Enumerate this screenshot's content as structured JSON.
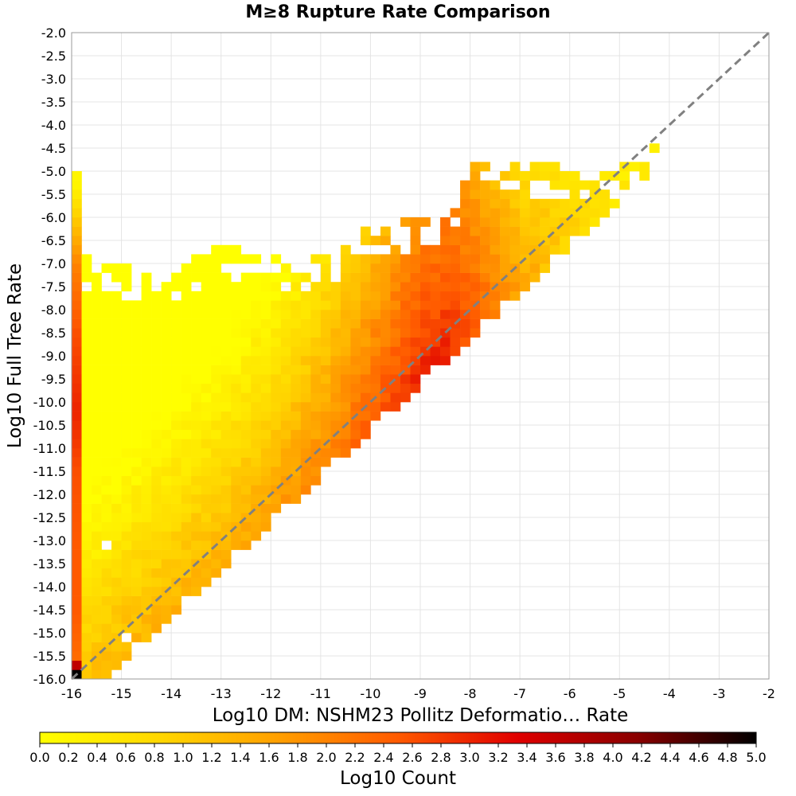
{
  "chart_data": {
    "type": "heatmap",
    "title": "M≥8 Rupture Rate Comparison",
    "xlabel": "Log10 DM: NSHM23 Pollitz Deformatio… Rate",
    "ylabel": "Log10 Full Tree Rate",
    "xlim": [
      -16,
      -2
    ],
    "ylim": [
      -16,
      -2
    ],
    "x_ticks": [
      "-16",
      "-15",
      "-14",
      "-13",
      "-12",
      "-11",
      "-10",
      "-9",
      "-8",
      "-7",
      "-6",
      "-5",
      "-4",
      "-3",
      "-2"
    ],
    "y_ticks": [
      "-2.0",
      "-2.5",
      "-3.0",
      "-3.5",
      "-4.0",
      "-4.5",
      "-5.0",
      "-5.5",
      "-6.0",
      "-6.5",
      "-7.0",
      "-7.5",
      "-8.0",
      "-8.5",
      "-9.0",
      "-9.5",
      "-10.0",
      "-10.5",
      "-11.0",
      "-11.5",
      "-12.0",
      "-12.5",
      "-13.0",
      "-13.5",
      "-14.0",
      "-14.5",
      "-15.0",
      "-15.5",
      "-16.0"
    ],
    "grid": true,
    "bin_width": 0.2,
    "reference_line": {
      "style": "dashed",
      "from": [
        -16,
        -16
      ],
      "to": [
        -2,
        -2
      ],
      "color": "#808080"
    },
    "colorbar": {
      "label": "Log10 Count",
      "range": [
        0,
        5
      ],
      "ticks": [
        "0.0",
        "0.2",
        "0.4",
        "0.6",
        "0.8",
        "1.0",
        "1.2",
        "1.4",
        "1.6",
        "1.8",
        "2.0",
        "2.2",
        "2.4",
        "2.6",
        "2.8",
        "3.0",
        "3.2",
        "3.4",
        "3.6",
        "3.8",
        "4.0",
        "4.2",
        "4.4",
        "4.6",
        "4.8",
        "5.0"
      ],
      "colors": [
        "#ffff00",
        "#ffd700",
        "#ff9f00",
        "#ff5a00",
        "#e00000",
        "#8a0000",
        "#000000"
      ]
    },
    "left_column_values": [
      {
        "y": -15.9,
        "v": 5.0
      },
      {
        "y": -15.5,
        "v": 2.3
      },
      {
        "y": -14.5,
        "v": 2.5
      },
      {
        "y": -13.0,
        "v": 2.5
      },
      {
        "y": -11.5,
        "v": 2.6
      },
      {
        "y": -10.2,
        "v": 3.0
      },
      {
        "y": -8.5,
        "v": 2.6
      },
      {
        "y": -7.0,
        "v": 2.0
      },
      {
        "y": -6.2,
        "v": 1.2
      },
      {
        "y": -5.3,
        "v": 0.2
      }
    ],
    "density_ridge": [
      {
        "x": -16,
        "y": -16,
        "v": 1.1
      },
      {
        "x": -13,
        "y": -14,
        "v": 1.6
      },
      {
        "x": -12,
        "y": -13,
        "v": 1.8
      },
      {
        "x": -11,
        "y": -12,
        "v": 2.1
      },
      {
        "x": -10,
        "y": -11,
        "v": 2.6
      },
      {
        "x": -9,
        "y": -9.8,
        "v": 3.1
      },
      {
        "x": -8.5,
        "y": -9,
        "v": 3.0
      },
      {
        "x": -8,
        "y": -8.3,
        "v": 2.6
      },
      {
        "x": -7,
        "y": -7.5,
        "v": 1.6
      },
      {
        "x": -6,
        "y": -6.2,
        "v": 0.9
      },
      {
        "x": -5,
        "y": -5.4,
        "v": 0.5
      }
    ],
    "upper_edge": [
      {
        "x": -15.6,
        "y": -6.9
      },
      {
        "x": -14,
        "y": -7.2
      },
      {
        "x": -13,
        "y": -6.5
      },
      {
        "x": -12,
        "y": -6.9
      },
      {
        "x": -10.8,
        "y": -6.8
      },
      {
        "x": -10,
        "y": -6.2
      },
      {
        "x": -8.5,
        "y": -5.9
      },
      {
        "x": -7.8,
        "y": -4.7
      },
      {
        "x": -5,
        "y": -5.0
      },
      {
        "x": -4.3,
        "y": -4.3
      }
    ]
  }
}
